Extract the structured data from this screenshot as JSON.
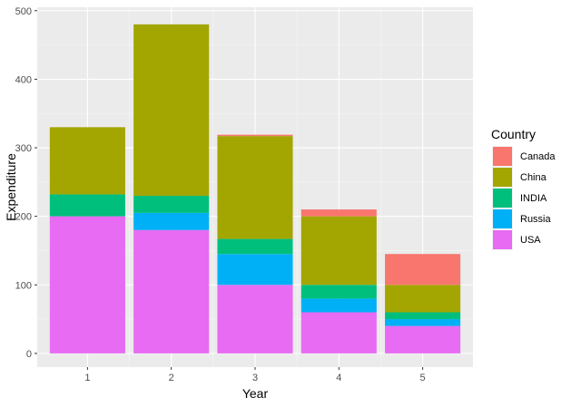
{
  "chart_data": {
    "type": "bar",
    "stacked": true,
    "xlabel": "Year",
    "ylabel": "Expenditure",
    "categories": [
      "1",
      "2",
      "3",
      "4",
      "5"
    ],
    "ylim": [
      0,
      500
    ],
    "yticks": [
      0,
      100,
      200,
      300,
      400,
      500
    ],
    "grid": true,
    "legend": {
      "title": "Country",
      "position": "right",
      "entries": [
        "Canada",
        "China",
        "INDIA",
        "Russia",
        "USA"
      ]
    },
    "series": [
      {
        "name": "USA",
        "color": "#E76BF3",
        "values": [
          200,
          180,
          100,
          60,
          40
        ]
      },
      {
        "name": "Russia",
        "color": "#00B0F6",
        "values": [
          0,
          25,
          45,
          20,
          10
        ]
      },
      {
        "name": "INDIA",
        "color": "#00BF7D",
        "values": [
          32,
          25,
          22,
          20,
          10
        ]
      },
      {
        "name": "China",
        "color": "#A3A500",
        "values": [
          98,
          250,
          150,
          100,
          40
        ]
      },
      {
        "name": "Canada",
        "color": "#F8766D",
        "values": [
          0,
          0,
          2,
          10,
          45
        ]
      }
    ]
  }
}
